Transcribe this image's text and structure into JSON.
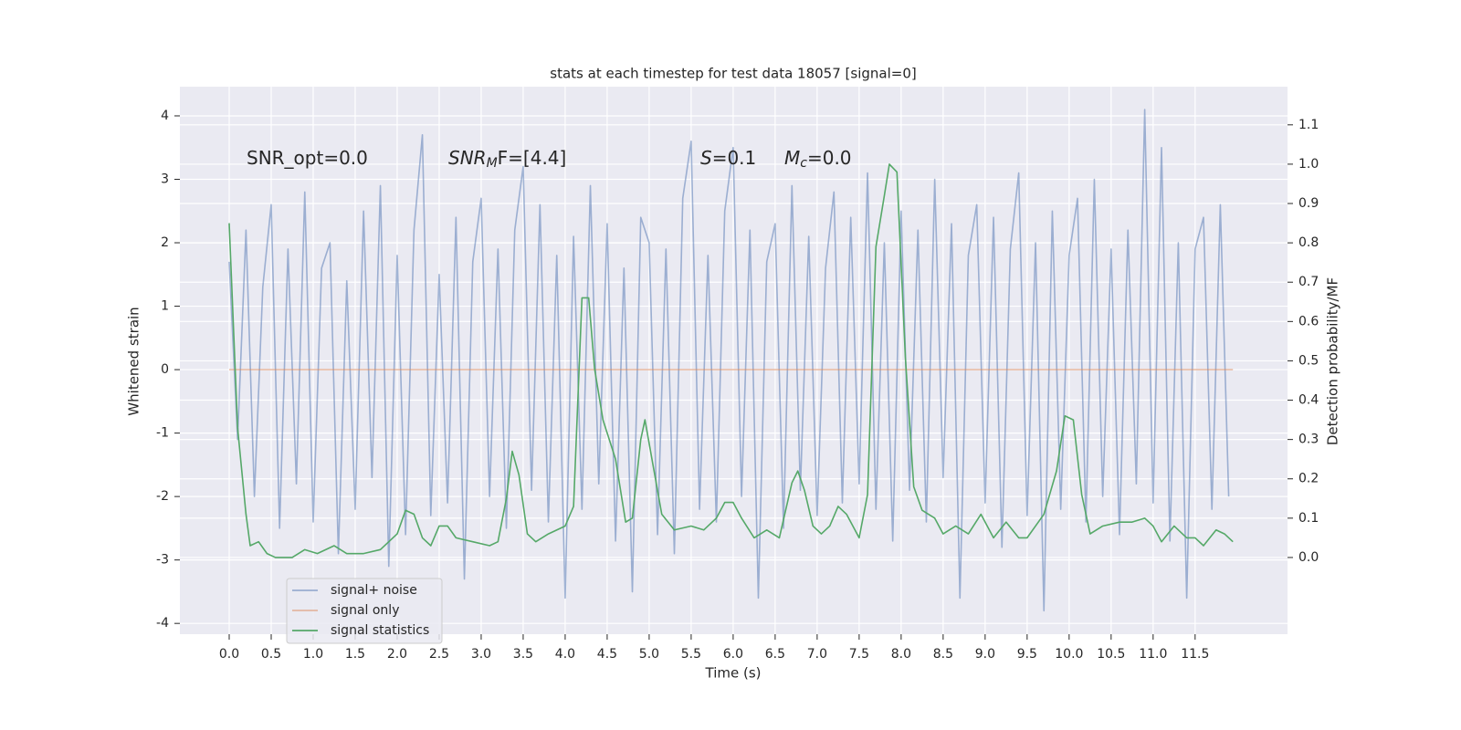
{
  "chart_data": {
    "type": "line",
    "title": "stats at each timestep for test data 18057 [signal=0]",
    "xlabel": "Time (s)",
    "ylabel": "Whitened strain",
    "y2label": "Detection probability/MF",
    "xlim": [
      -0.587,
      12.6
    ],
    "ylim": [
      -4.17,
      4.46
    ],
    "y2lim": [
      -0.195,
      1.197
    ],
    "xticks": [
      {
        "value": 0.0,
        "label": "0.0"
      },
      {
        "value": 0.5,
        "label": "0.5"
      },
      {
        "value": 1.0,
        "label": "1.0"
      },
      {
        "value": 1.5,
        "label": "1.5"
      },
      {
        "value": 2.0,
        "label": "2.0"
      },
      {
        "value": 2.5,
        "label": "2.5"
      },
      {
        "value": 3.0,
        "label": "3.0"
      },
      {
        "value": 3.5,
        "label": "3.5"
      },
      {
        "value": 4.0,
        "label": "4.0"
      },
      {
        "value": 4.5,
        "label": "4.5"
      },
      {
        "value": 5.0,
        "label": "5.0"
      },
      {
        "value": 5.5,
        "label": "5.5"
      },
      {
        "value": 6.0,
        "label": "6.0"
      },
      {
        "value": 6.5,
        "label": "6.5"
      },
      {
        "value": 7.0,
        "label": "7.0"
      },
      {
        "value": 7.5,
        "label": "7.5"
      },
      {
        "value": 8.0,
        "label": "8.0"
      },
      {
        "value": 8.5,
        "label": "8.5"
      },
      {
        "value": 9.0,
        "label": "9.0"
      },
      {
        "value": 9.5,
        "label": "9.5"
      },
      {
        "value": 10.0,
        "label": "10.0"
      },
      {
        "value": 10.5,
        "label": "10.5"
      },
      {
        "value": 11.0,
        "label": "11.0"
      },
      {
        "value": 11.5,
        "label": "11.5"
      }
    ],
    "yticks": [
      -4,
      -3,
      -2,
      -1,
      0,
      1,
      2,
      3,
      4
    ],
    "y2ticks": [
      {
        "value": 0.0,
        "label": "0.0"
      },
      {
        "value": 0.1,
        "label": "0.1"
      },
      {
        "value": 0.2,
        "label": "0.2"
      },
      {
        "value": 0.3,
        "label": "0.3"
      },
      {
        "value": 0.4,
        "label": "0.4"
      },
      {
        "value": 0.5,
        "label": "0.5"
      },
      {
        "value": 0.6,
        "label": "0.6"
      },
      {
        "value": 0.7,
        "label": "0.7"
      },
      {
        "value": 0.8,
        "label": "0.8"
      },
      {
        "value": 0.9,
        "label": "0.9"
      },
      {
        "value": 1.0,
        "label": "1.0"
      },
      {
        "value": 1.1,
        "label": "1.1"
      }
    ],
    "grid": true,
    "legend": "lower left",
    "annotations": [
      {
        "text": "SNR_opt=0.0"
      },
      {
        "text": "SNR",
        "sub": "M",
        "after": "F=[4.4]"
      },
      {
        "text": "S",
        "after": "=0.1"
      },
      {
        "text": "M",
        "sub": "c",
        "after": "=0.0"
      }
    ],
    "series": [
      {
        "name": "signal+ noise",
        "color": "#4c72b0",
        "opacity": 0.5,
        "x": [
          0.0,
          0.1,
          0.2,
          0.3,
          0.4,
          0.5,
          0.6,
          0.7,
          0.8,
          0.9,
          1.0,
          1.1,
          1.2,
          1.3,
          1.4,
          1.5,
          1.6,
          1.7,
          1.8,
          1.9,
          2.0,
          2.1,
          2.2,
          2.3,
          2.4,
          2.5,
          2.6,
          2.7,
          2.8,
          2.9,
          3.0,
          3.1,
          3.2,
          3.3,
          3.4,
          3.5,
          3.6,
          3.7,
          3.8,
          3.9,
          4.0,
          4.1,
          4.2,
          4.3,
          4.4,
          4.5,
          4.6,
          4.7,
          4.8,
          4.9,
          5.0,
          5.1,
          5.2,
          5.3,
          5.4,
          5.5,
          5.6,
          5.7,
          5.8,
          5.9,
          6.0,
          6.1,
          6.2,
          6.3,
          6.4,
          6.5,
          6.6,
          6.7,
          6.8,
          6.9,
          7.0,
          7.1,
          7.2,
          7.3,
          7.4,
          7.5,
          7.6,
          7.7,
          7.8,
          7.9,
          8.0,
          8.1,
          8.2,
          8.3,
          8.4,
          8.5,
          8.6,
          8.7,
          8.8,
          8.9,
          9.0,
          9.1,
          9.2,
          9.3,
          9.4,
          9.5,
          9.6,
          9.7,
          9.8,
          9.9,
          10.0,
          10.1,
          10.2,
          10.3,
          10.4,
          10.5,
          10.6,
          10.7,
          10.8,
          10.9,
          11.0,
          11.1,
          11.2,
          11.3,
          11.4,
          11.5,
          11.6,
          11.7,
          11.8,
          11.9
        ],
        "values": [
          1.7,
          -1.1,
          2.2,
          -2.0,
          1.3,
          2.6,
          -2.5,
          1.9,
          -1.8,
          2.8,
          -2.4,
          1.6,
          2.0,
          -2.9,
          1.4,
          -2.2,
          2.5,
          -1.7,
          2.9,
          -3.1,
          1.8,
          -2.6,
          2.2,
          3.7,
          -2.3,
          1.5,
          -2.1,
          2.4,
          -3.3,
          1.7,
          2.7,
          -2.0,
          1.9,
          -2.5,
          2.2,
          3.2,
          -1.9,
          2.6,
          -2.4,
          1.8,
          -3.6,
          2.1,
          -2.2,
          2.9,
          -1.8,
          2.3,
          -2.7,
          1.6,
          -3.5,
          2.4,
          2.0,
          -2.6,
          1.9,
          -2.9,
          2.7,
          3.6,
          -2.2,
          1.8,
          -2.4,
          2.5,
          3.5,
          -2.0,
          2.2,
          -3.6,
          1.7,
          2.3,
          -2.5,
          2.9,
          -1.9,
          2.1,
          -2.3,
          1.6,
          2.8,
          -2.1,
          2.4,
          -1.8,
          3.1,
          -2.2,
          2.0,
          -2.7,
          2.5,
          -1.9,
          2.2,
          -2.4,
          3.0,
          -1.7,
          2.3,
          -3.6,
          1.8,
          2.6,
          -2.1,
          2.4,
          -2.8,
          1.9,
          3.1,
          -2.3,
          2.0,
          -3.8,
          2.5,
          -2.2,
          1.8,
          2.7,
          -2.4,
          3.0,
          -2.0,
          1.9,
          -2.6,
          2.2,
          -1.8,
          4.1,
          -2.1,
          3.5,
          -2.7,
          2.0,
          -3.6,
          1.9,
          2.4,
          -2.2,
          2.6,
          -2.0
        ]
      },
      {
        "name": "signal only",
        "color": "#dd8452",
        "opacity": 0.5,
        "x": [
          0.0,
          11.95
        ],
        "values": [
          0,
          0
        ]
      },
      {
        "name": "signal statistics",
        "color": "#55a868",
        "opacity": 1,
        "axis": "y2",
        "x": [
          0.0,
          0.1,
          0.2,
          0.25,
          0.35,
          0.45,
          0.55,
          0.75,
          0.9,
          1.05,
          1.25,
          1.4,
          1.6,
          1.8,
          2.0,
          2.1,
          2.2,
          2.3,
          2.4,
          2.5,
          2.6,
          2.7,
          2.9,
          3.1,
          3.2,
          3.3,
          3.37,
          3.45,
          3.55,
          3.65,
          3.8,
          4.0,
          4.1,
          4.2,
          4.28,
          4.35,
          4.45,
          4.6,
          4.72,
          4.8,
          4.9,
          4.95,
          5.05,
          5.15,
          5.3,
          5.5,
          5.65,
          5.8,
          5.9,
          6.0,
          6.1,
          6.25,
          6.4,
          6.55,
          6.7,
          6.77,
          6.85,
          6.95,
          7.05,
          7.15,
          7.25,
          7.35,
          7.5,
          7.6,
          7.7,
          7.8,
          7.86,
          7.95,
          8.05,
          8.15,
          8.25,
          8.4,
          8.5,
          8.65,
          8.8,
          8.95,
          9.1,
          9.25,
          9.4,
          9.5,
          9.7,
          9.85,
          9.95,
          10.05,
          10.15,
          10.25,
          10.4,
          10.6,
          10.75,
          10.9,
          11.0,
          11.1,
          11.25,
          11.4,
          11.5,
          11.6,
          11.75,
          11.85,
          11.95
        ],
        "values": [
          0.85,
          0.33,
          0.11,
          0.03,
          0.04,
          0.01,
          0.0,
          0.0,
          0.02,
          0.01,
          0.03,
          0.01,
          0.01,
          0.02,
          0.06,
          0.12,
          0.11,
          0.05,
          0.03,
          0.08,
          0.08,
          0.05,
          0.04,
          0.03,
          0.04,
          0.15,
          0.27,
          0.21,
          0.06,
          0.04,
          0.06,
          0.08,
          0.13,
          0.66,
          0.66,
          0.48,
          0.35,
          0.25,
          0.09,
          0.1,
          0.3,
          0.35,
          0.23,
          0.11,
          0.07,
          0.08,
          0.07,
          0.1,
          0.14,
          0.14,
          0.1,
          0.05,
          0.07,
          0.05,
          0.19,
          0.22,
          0.17,
          0.08,
          0.06,
          0.08,
          0.13,
          0.11,
          0.05,
          0.16,
          0.79,
          0.92,
          1.0,
          0.98,
          0.51,
          0.18,
          0.12,
          0.1,
          0.06,
          0.08,
          0.06,
          0.11,
          0.05,
          0.09,
          0.05,
          0.05,
          0.11,
          0.22,
          0.36,
          0.35,
          0.16,
          0.06,
          0.08,
          0.09,
          0.09,
          0.1,
          0.08,
          0.04,
          0.08,
          0.05,
          0.05,
          0.03,
          0.07,
          0.06,
          0.04
        ]
      }
    ]
  }
}
